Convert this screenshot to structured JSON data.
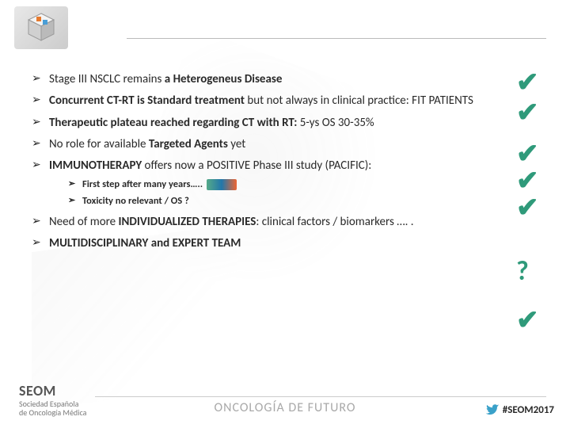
{
  "colors": {
    "text": "#2a2a2a",
    "check": "#2f9a7a",
    "rule": "#bbbbbb",
    "footer_text": "#a8a8a8",
    "twitter": "#3aa1c9"
  },
  "bullets": [
    {
      "html": "Stage III NSCLC remains <b>a Heterogeneus Disease</b>"
    },
    {
      "html": "<b>Concurrent CT-RT is Standard treatment</b> but not always in clinical practice: FIT PATIENTS"
    },
    {
      "html": "<b>Therapeutic plateau reached regarding CT with RT:</b> 5-ys OS 30-35%"
    },
    {
      "html": "No role for available <b>Targeted Agents</b> yet"
    },
    {
      "html": "<b>IMMUNOTHERAPY</b> offers now a POSITIVE Phase III study (PACIFIC):",
      "sub": [
        {
          "html": "First step after many years….. <span class=\"inline-img\"></span>"
        },
        {
          "html": "Toxicity no relevant / OS ?"
        }
      ]
    },
    {
      "html": "Need of more <b>INDIVIDUALIZED THERAPIES</b>: clinical factors / biomarkers …. ."
    },
    {
      "html": "<b>MULTIDISCIPLINARY and EXPERT TEAM</b>"
    }
  ],
  "checks": [
    "✔",
    "✔",
    "✔",
    "✔",
    "✔",
    "?",
    "✔"
  ],
  "check_margins": [
    0,
    4,
    18,
    0,
    0,
    46,
    28
  ],
  "footer": {
    "brand_big": "SEOM",
    "brand_small1": "Sociedad Española",
    "brand_small2": "de Oncología Médica",
    "center": "ONCOLOGÍA DE FUTURO",
    "hashtag": "#SEOM2017"
  }
}
